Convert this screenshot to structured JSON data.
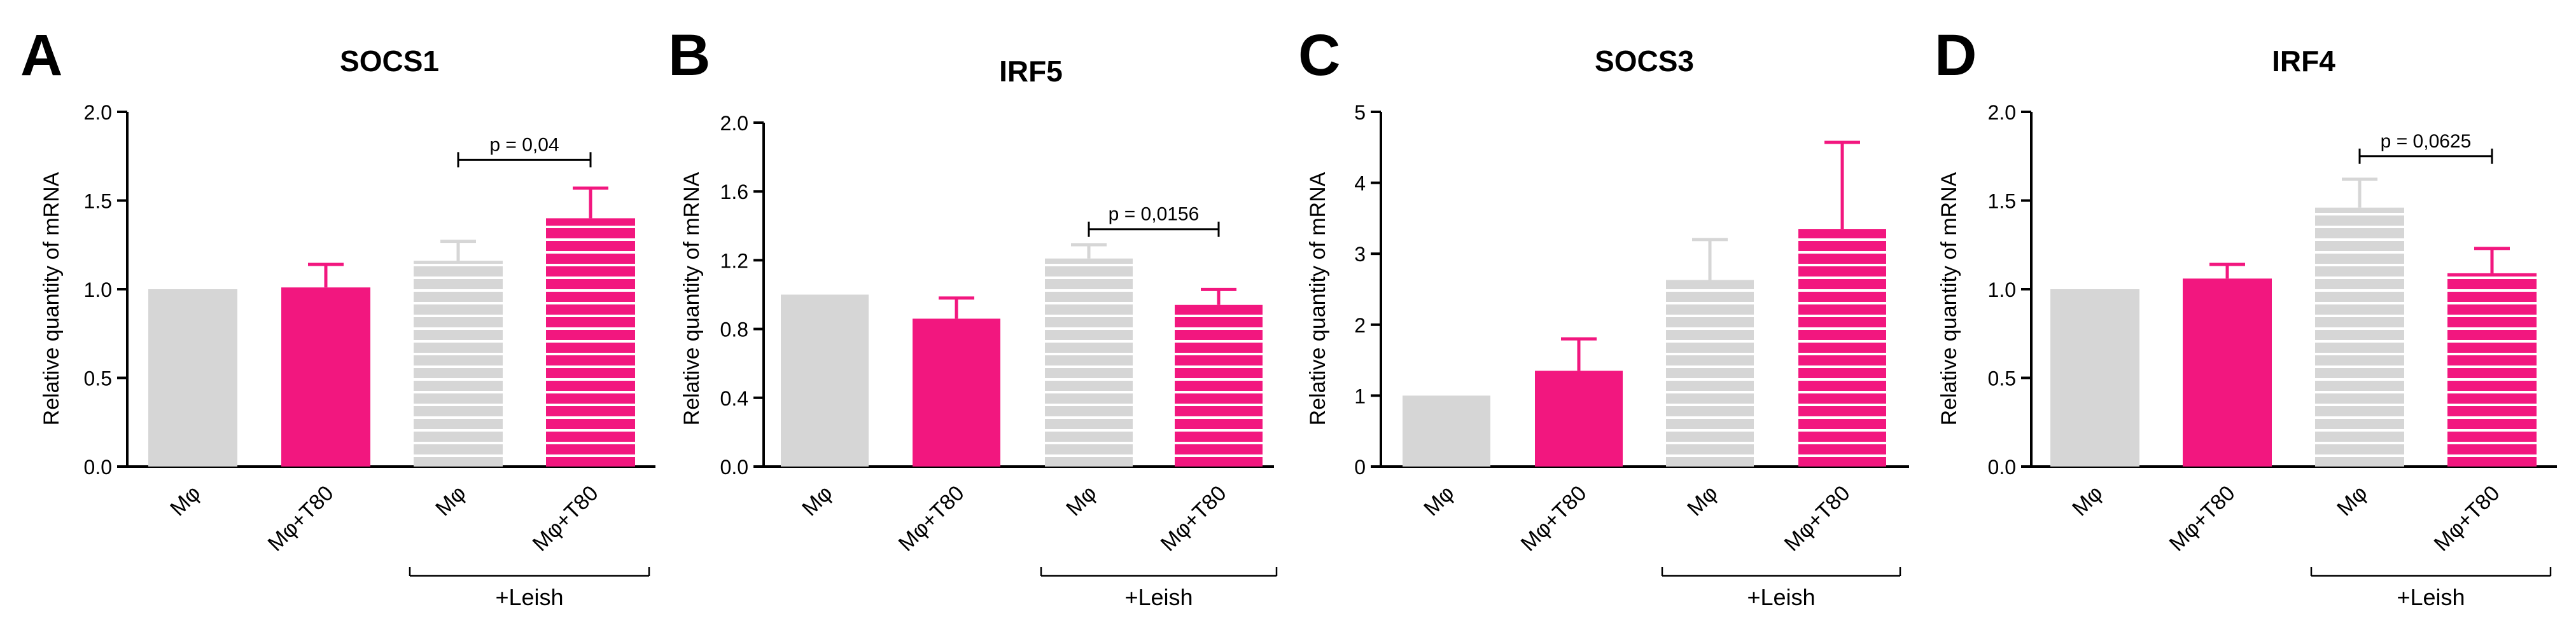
{
  "colors": {
    "control": "#d6d6d6",
    "treated": "#f2177f",
    "stripe": "#ffffff",
    "axis": "#000000"
  },
  "group_label": "+Leish",
  "chart_data": [
    {
      "type": "bar",
      "panel": "A",
      "title": "SOCS1",
      "ylabel": "Relative quantity of mRNA",
      "xlabel": "",
      "categories": [
        "Mφ",
        "Mφ+T80",
        "Mφ",
        "Mφ+T80"
      ],
      "values": [
        1.0,
        1.01,
        1.16,
        1.4
      ],
      "errors": [
        0,
        0.13,
        0.11,
        0.17
      ],
      "ylim": [
        0,
        2.0
      ],
      "yticks": [
        "0.0",
        "0.5",
        "1.0",
        "1.5",
        "2.0"
      ],
      "group": "+Leish",
      "grouped_bars": [
        2,
        3
      ],
      "comparison": {
        "bars": [
          2,
          3
        ],
        "label": "p = 0,04",
        "y": 1.73
      }
    },
    {
      "type": "bar",
      "panel": "B",
      "title": "IRF5",
      "ylabel": "Relative quantity of mRNA",
      "xlabel": "",
      "categories": [
        "Mφ",
        "Mφ+T80",
        "Mφ",
        "Mφ+T80"
      ],
      "values": [
        1.0,
        0.86,
        1.21,
        0.94
      ],
      "errors": [
        0,
        0.12,
        0.08,
        0.09
      ],
      "ylim": [
        0,
        2.0
      ],
      "yticks": [
        "0.0",
        "0.4",
        "0.8",
        "1.2",
        "1.6",
        "2.0"
      ],
      "group": "+Leish",
      "grouped_bars": [
        2,
        3
      ],
      "comparison": {
        "bars": [
          2,
          3
        ],
        "label": "p = 0,0156",
        "y": 1.38
      }
    },
    {
      "type": "bar",
      "panel": "C",
      "title": "SOCS3",
      "ylabel": "Relative quantity of mRNA",
      "xlabel": "",
      "categories": [
        "Mφ",
        "Mφ+T80",
        "Mφ",
        "Mφ+T80"
      ],
      "values": [
        1.0,
        1.35,
        2.63,
        3.35
      ],
      "errors": [
        0,
        0.45,
        0.57,
        1.22
      ],
      "ylim": [
        0,
        5
      ],
      "yticks": [
        "0",
        "1",
        "2",
        "3",
        "4",
        "5"
      ],
      "group": "+Leish",
      "grouped_bars": [
        2,
        3
      ],
      "comparison": null
    },
    {
      "type": "bar",
      "panel": "D",
      "title": "IRF4",
      "ylabel": "Relative quantity of mRNA",
      "xlabel": "",
      "categories": [
        "Mφ",
        "Mφ+T80",
        "Mφ",
        "Mφ+T80"
      ],
      "values": [
        1.0,
        1.06,
        1.46,
        1.09
      ],
      "errors": [
        0,
        0.08,
        0.16,
        0.14
      ],
      "ylim": [
        0,
        2.0
      ],
      "yticks": [
        "0.0",
        "0.5",
        "1.0",
        "1.5",
        "2.0"
      ],
      "group": "+Leish",
      "grouped_bars": [
        2,
        3
      ],
      "comparison": {
        "bars": [
          2,
          3
        ],
        "label": "p = 0,0625",
        "y": 1.75
      }
    }
  ]
}
